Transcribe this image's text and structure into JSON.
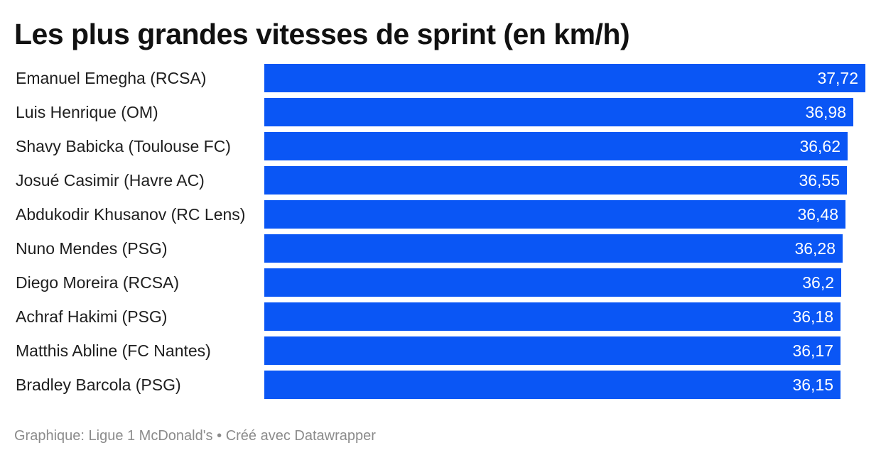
{
  "title": "Les plus grandes vitesses de sprint (en km/h)",
  "footer": {
    "source": "Graphique: Ligue 1 McDonald's",
    "separator": "•",
    "credit": "Créé avec Datawrapper"
  },
  "colors": {
    "bar": "#0a56f5",
    "value_text": "#ffffff",
    "footer_text": "#8b8b8b"
  },
  "chart_data": {
    "type": "bar",
    "orientation": "horizontal",
    "title": "Les plus grandes vitesses de sprint (en km/h)",
    "xlabel": "",
    "ylabel": "",
    "grid": false,
    "xlim": [
      0,
      37.72
    ],
    "categories": [
      "Emanuel Emegha (RCSA)",
      "Luis Henrique (OM)",
      "Shavy Babicka (Toulouse FC)",
      "Josué Casimir (Havre AC)",
      "Abdukodir Khusanov (RC Lens)",
      "Nuno Mendes (PSG)",
      "Diego Moreira (RCSA)",
      "Achraf Hakimi (PSG)",
      "Matthis Abline (FC Nantes)",
      "Bradley Barcola (PSG)"
    ],
    "values": [
      37.72,
      36.98,
      36.62,
      36.55,
      36.48,
      36.28,
      36.2,
      36.18,
      36.17,
      36.15
    ],
    "value_labels": [
      "37,72",
      "36,98",
      "36,62",
      "36,55",
      "36,48",
      "36,28",
      "36,2",
      "36,18",
      "36,17",
      "36,15"
    ]
  }
}
